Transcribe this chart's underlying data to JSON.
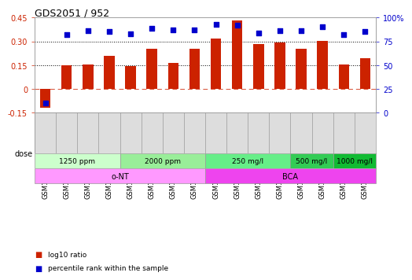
{
  "title": "GDS2051 / 952",
  "samples": [
    "GSM105783",
    "GSM105784",
    "GSM105785",
    "GSM105786",
    "GSM105787",
    "GSM105788",
    "GSM105789",
    "GSM105790",
    "GSM105775",
    "GSM105776",
    "GSM105777",
    "GSM105778",
    "GSM105779",
    "GSM105780",
    "GSM105781",
    "GSM105782"
  ],
  "log10_ratio": [
    -0.12,
    0.15,
    0.155,
    0.21,
    0.145,
    0.255,
    0.165,
    0.255,
    0.32,
    0.43,
    0.285,
    0.295,
    0.255,
    0.305,
    0.155,
    0.195
  ],
  "percentile": [
    10,
    82,
    86,
    85,
    83,
    89,
    87,
    87,
    93,
    92,
    84,
    86,
    86,
    90,
    82,
    85
  ],
  "bar_color": "#cc2200",
  "dot_color": "#0000cc",
  "ylim_left": [
    -0.15,
    0.45
  ],
  "ylim_right": [
    0,
    100
  ],
  "yticks_left": [
    -0.15,
    0,
    0.15,
    0.3,
    0.45
  ],
  "yticks_right": [
    0,
    25,
    50,
    75,
    100
  ],
  "ytick_labels_left": [
    "-0.15",
    "0",
    "0.15",
    "0.30",
    "0.45"
  ],
  "ytick_labels_right": [
    "0",
    "25",
    "50",
    "75",
    "100%"
  ],
  "hlines": [
    0.15,
    0.3
  ],
  "dose_groups": [
    {
      "label": "1250 ppm",
      "start": 0,
      "end": 4,
      "color": "#ccffcc"
    },
    {
      "label": "2000 ppm",
      "start": 4,
      "end": 8,
      "color": "#99ee99"
    },
    {
      "label": "250 mg/l",
      "start": 8,
      "end": 12,
      "color": "#66ee88"
    },
    {
      "label": "500 mg/l",
      "start": 12,
      "end": 14,
      "color": "#33cc55"
    },
    {
      "label": "1000 mg/l",
      "start": 14,
      "end": 16,
      "color": "#11bb33"
    }
  ],
  "agent_groups": [
    {
      "label": "o-NT",
      "start": 0,
      "end": 8,
      "color": "#ff99ff"
    },
    {
      "label": "BCA",
      "start": 8,
      "end": 16,
      "color": "#ee44ee"
    }
  ],
  "legend_bar_color": "#cc2200",
  "legend_dot_color": "#0000cc",
  "legend_bar_label": "log10 ratio",
  "legend_dot_label": "percentile rank within the sample",
  "background_color": "#ffffff",
  "plot_bg": "#ffffff",
  "xtick_bg": "#dddddd",
  "dose_label_color": "#444444",
  "agent_label_color": "#444444"
}
